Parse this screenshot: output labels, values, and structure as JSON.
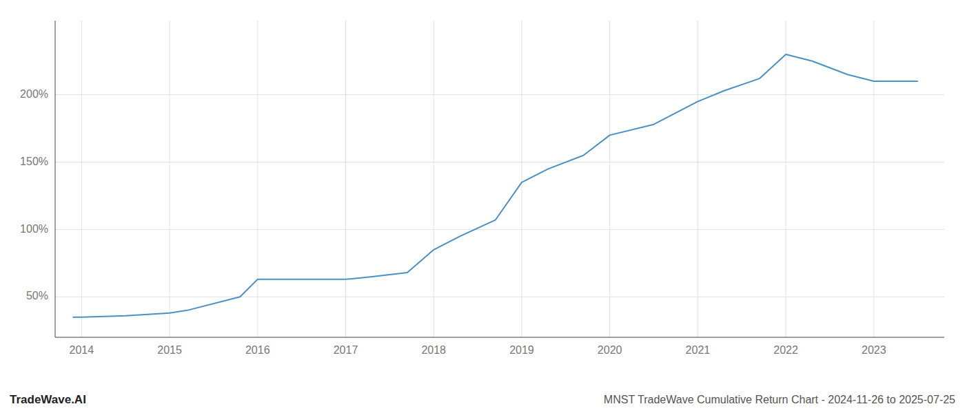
{
  "chart_data": {
    "type": "line",
    "title": "MNST TradeWave Cumulative Return Chart - 2024-11-26 to 2025-07-25",
    "annotations": [
      "TradeWave.AI"
    ],
    "x": [
      2013.9,
      2014.0,
      2014.5,
      2015.0,
      2015.2,
      2015.8,
      2016.0,
      2016.5,
      2017.0,
      2017.3,
      2017.7,
      2018.0,
      2018.3,
      2018.7,
      2019.0,
      2019.3,
      2019.7,
      2020.0,
      2020.5,
      2021.0,
      2021.3,
      2021.7,
      2022.0,
      2022.3,
      2022.7,
      2023.0,
      2023.5
    ],
    "values": [
      35,
      35,
      36,
      38,
      40,
      50,
      63,
      63,
      63,
      65,
      68,
      85,
      95,
      107,
      135,
      145,
      155,
      170,
      178,
      195,
      203,
      212,
      230,
      225,
      215,
      210,
      210
    ],
    "color": "#4a90c4",
    "xlim": [
      2013.7,
      2023.8
    ],
    "ylim": [
      20,
      255
    ],
    "xticks": [
      2014,
      2015,
      2016,
      2017,
      2018,
      2019,
      2020,
      2021,
      2022,
      2023
    ],
    "yticks": [
      {
        "value": 50,
        "label": "50%"
      },
      {
        "value": 100,
        "label": "100%"
      },
      {
        "value": 150,
        "label": "150%"
      },
      {
        "value": 200,
        "label": "200%"
      }
    ],
    "grid": true
  }
}
